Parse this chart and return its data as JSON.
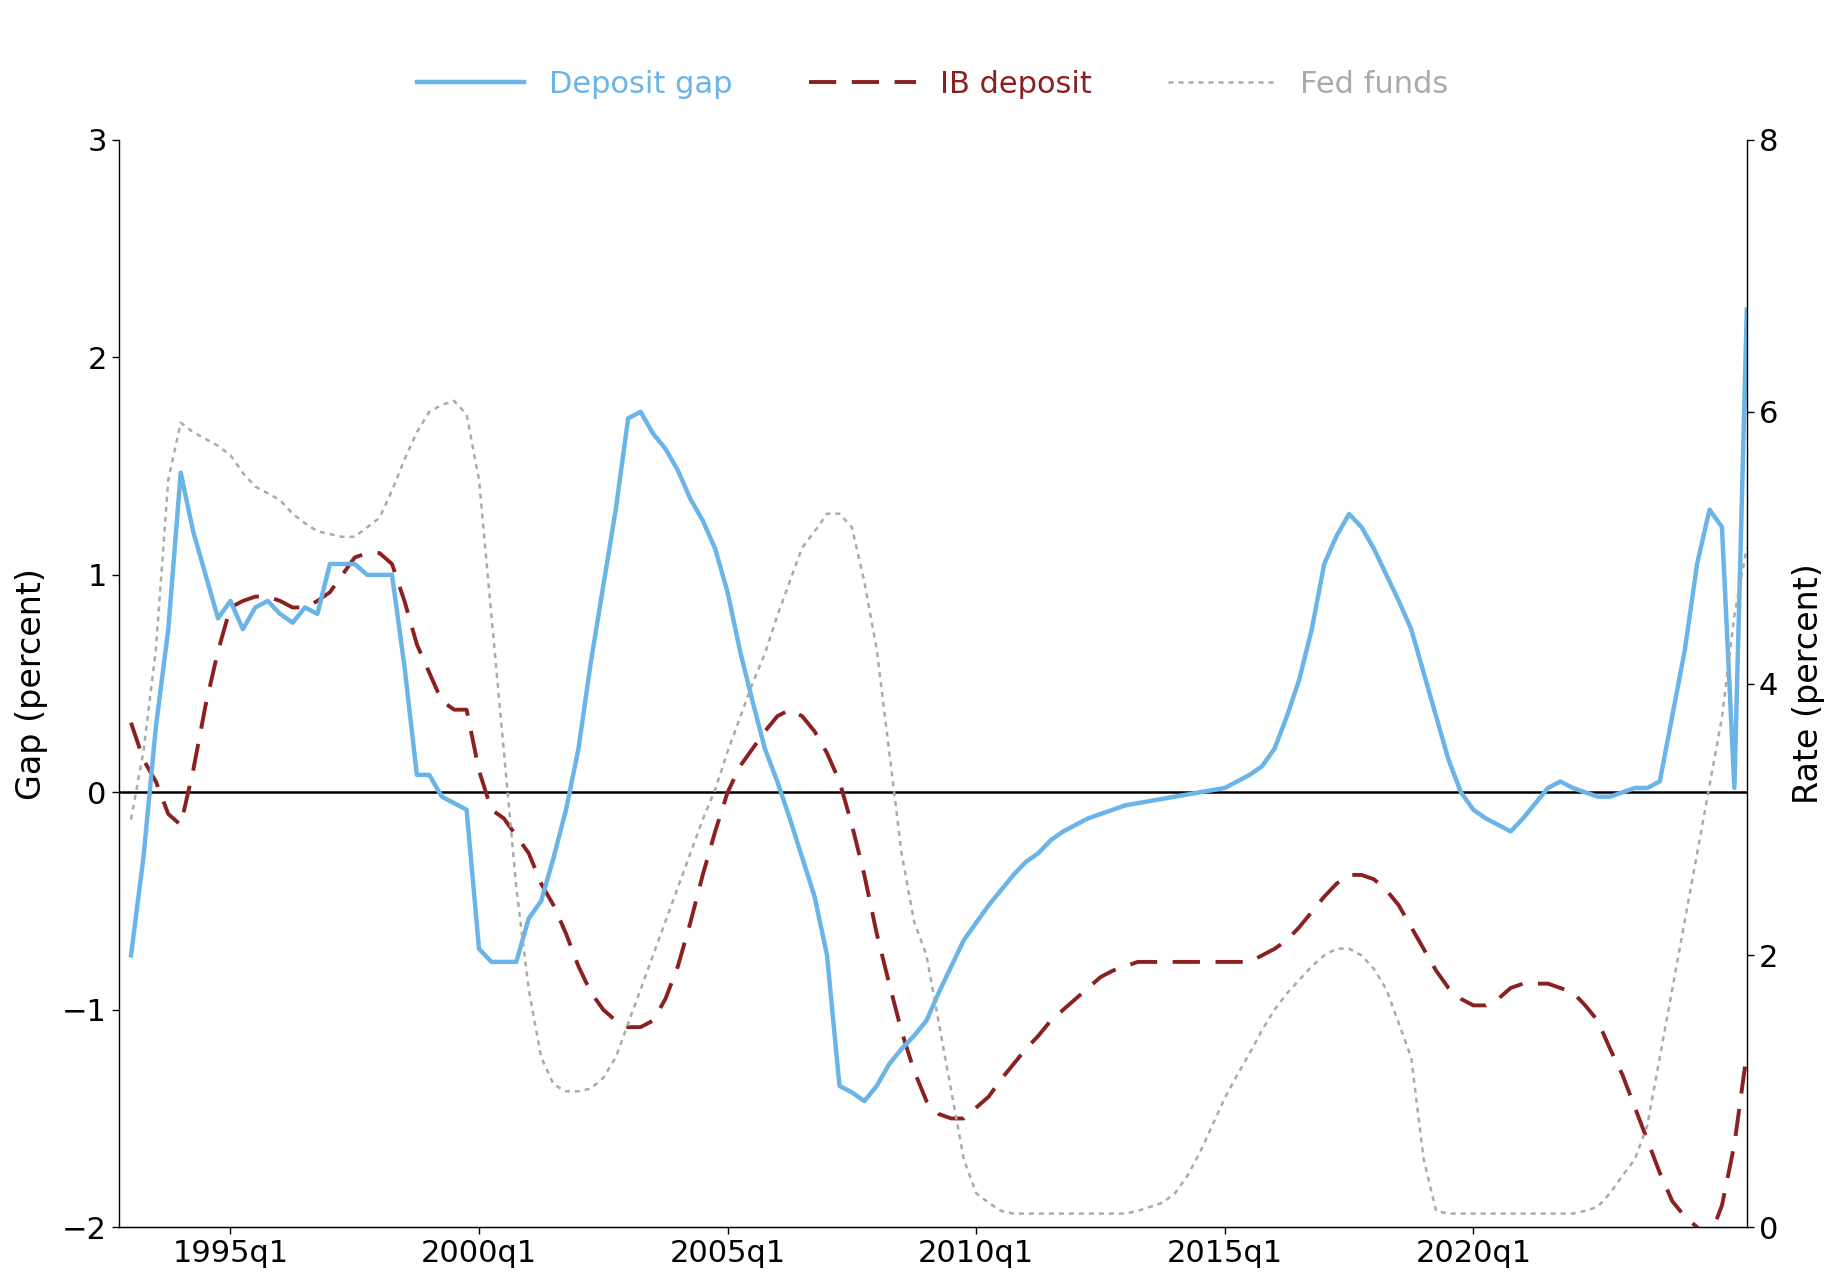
{
  "ylabel_left": "Gap (percent)",
  "ylabel_right": "Rate (percent)",
  "left_ylim": [
    -2,
    3
  ],
  "right_ylim": [
    0,
    8
  ],
  "left_yticks": [
    -2,
    -1,
    0,
    1,
    2,
    3
  ],
  "right_yticks": [
    0,
    2,
    4,
    6,
    8
  ],
  "legend_labels": [
    "Deposit gap",
    "IB deposit",
    "Fed funds"
  ],
  "colors": {
    "deposit_gap": "#6ab4e8",
    "ib_deposit": "#8b2020",
    "fed_funds": "#aaaaaa"
  },
  "xtick_labels": [
    "1995q1",
    "2000q1",
    "2005q1",
    "2010q1",
    "2015q1",
    "2020q1"
  ],
  "deposit_gap": [
    -0.75,
    -0.3,
    0.3,
    0.75,
    1.47,
    1.2,
    1.0,
    0.8,
    0.88,
    0.75,
    0.85,
    0.88,
    0.82,
    0.78,
    0.85,
    0.82,
    1.05,
    1.05,
    1.05,
    1.0,
    1.0,
    1.0,
    0.58,
    0.08,
    0.08,
    -0.02,
    -0.05,
    -0.08,
    -0.72,
    -0.78,
    -0.78,
    -0.78,
    -0.58,
    -0.5,
    -0.3,
    -0.08,
    0.2,
    0.6,
    0.95,
    1.3,
    1.72,
    1.75,
    1.65,
    1.58,
    1.48,
    1.35,
    1.25,
    1.12,
    0.92,
    0.65,
    0.42,
    0.2,
    0.05,
    -0.12,
    -0.3,
    -0.48,
    -0.75,
    -1.35,
    -1.38,
    -1.42,
    -1.35,
    -1.25,
    -1.18,
    -1.12,
    -1.05,
    -0.92,
    -0.8,
    -0.68,
    -0.6,
    -0.52,
    -0.45,
    -0.38,
    -0.32,
    -0.28,
    -0.22,
    -0.18,
    -0.15,
    -0.12,
    -0.1,
    -0.08,
    -0.06,
    -0.05,
    -0.04,
    -0.03,
    -0.02,
    -0.01,
    0.0,
    0.01,
    0.02,
    0.05,
    0.08,
    0.12,
    0.2,
    0.35,
    0.52,
    0.75,
    1.05,
    1.18,
    1.28,
    1.22,
    1.12,
    1.0,
    0.88,
    0.75,
    0.55,
    0.35,
    0.15,
    0.0,
    -0.08,
    -0.12,
    -0.15,
    -0.18,
    -0.12,
    -0.05,
    0.02,
    0.05,
    0.02,
    0.0,
    -0.02,
    -0.02,
    0.0,
    0.02,
    0.02,
    0.05,
    0.35,
    0.65,
    1.05,
    1.3,
    1.22,
    0.02,
    2.22
  ],
  "ib_deposit": [
    0.32,
    0.15,
    0.05,
    -0.1,
    -0.15,
    0.1,
    0.4,
    0.65,
    0.85,
    0.88,
    0.9,
    0.9,
    0.88,
    0.85,
    0.85,
    0.88,
    0.92,
    1.0,
    1.08,
    1.1,
    1.1,
    1.05,
    0.88,
    0.68,
    0.55,
    0.42,
    0.38,
    0.38,
    0.1,
    -0.08,
    -0.12,
    -0.2,
    -0.28,
    -0.42,
    -0.52,
    -0.65,
    -0.8,
    -0.92,
    -1.0,
    -1.05,
    -1.08,
    -1.08,
    -1.05,
    -0.95,
    -0.8,
    -0.6,
    -0.38,
    -0.18,
    0.0,
    0.12,
    0.2,
    0.28,
    0.35,
    0.38,
    0.35,
    0.28,
    0.18,
    0.05,
    -0.15,
    -0.38,
    -0.65,
    -0.88,
    -1.1,
    -1.28,
    -1.42,
    -1.48,
    -1.5,
    -1.5,
    -1.45,
    -1.4,
    -1.32,
    -1.25,
    -1.18,
    -1.12,
    -1.05,
    -1.0,
    -0.95,
    -0.9,
    -0.85,
    -0.82,
    -0.8,
    -0.78,
    -0.78,
    -0.78,
    -0.78,
    -0.78,
    -0.78,
    -0.78,
    -0.78,
    -0.78,
    -0.78,
    -0.75,
    -0.72,
    -0.68,
    -0.62,
    -0.55,
    -0.48,
    -0.42,
    -0.38,
    -0.38,
    -0.4,
    -0.45,
    -0.52,
    -0.62,
    -0.72,
    -0.82,
    -0.9,
    -0.95,
    -0.98,
    -0.98,
    -0.95,
    -0.9,
    -0.88,
    -0.88,
    -0.88,
    -0.9,
    -0.92,
    -0.98,
    -1.05,
    -1.18,
    -1.3,
    -1.45,
    -1.6,
    -1.75,
    -1.88,
    -1.95,
    -2.0,
    -2.05,
    -1.9,
    -1.62,
    -1.2
  ],
  "fed_funds": [
    3.0,
    3.5,
    4.25,
    5.5,
    5.92,
    5.85,
    5.8,
    5.75,
    5.68,
    5.55,
    5.45,
    5.4,
    5.35,
    5.25,
    5.18,
    5.12,
    5.1,
    5.08,
    5.08,
    5.15,
    5.22,
    5.42,
    5.65,
    5.85,
    6.0,
    6.05,
    6.08,
    5.98,
    5.5,
    4.5,
    3.5,
    2.5,
    1.75,
    1.25,
    1.05,
    1.0,
    1.0,
    1.02,
    1.1,
    1.25,
    1.5,
    1.75,
    2.0,
    2.25,
    2.5,
    2.75,
    3.0,
    3.22,
    3.5,
    3.75,
    4.0,
    4.22,
    4.5,
    4.75,
    5.0,
    5.12,
    5.25,
    5.25,
    5.15,
    4.75,
    4.25,
    3.5,
    2.75,
    2.25,
    2.0,
    1.5,
    1.0,
    0.5,
    0.25,
    0.18,
    0.12,
    0.1,
    0.1,
    0.1,
    0.1,
    0.1,
    0.1,
    0.1,
    0.1,
    0.1,
    0.1,
    0.12,
    0.15,
    0.18,
    0.25,
    0.38,
    0.55,
    0.75,
    0.95,
    1.12,
    1.28,
    1.45,
    1.6,
    1.72,
    1.82,
    1.92,
    2.0,
    2.05,
    2.05,
    2.0,
    1.9,
    1.75,
    1.5,
    1.25,
    0.5,
    0.12,
    0.1,
    0.1,
    0.1,
    0.1,
    0.1,
    0.1,
    0.1,
    0.1,
    0.1,
    0.1,
    0.1,
    0.12,
    0.15,
    0.25,
    0.38,
    0.5,
    0.75,
    1.25,
    1.75,
    2.25,
    2.75,
    3.25,
    3.75,
    4.5,
    5.0
  ]
}
